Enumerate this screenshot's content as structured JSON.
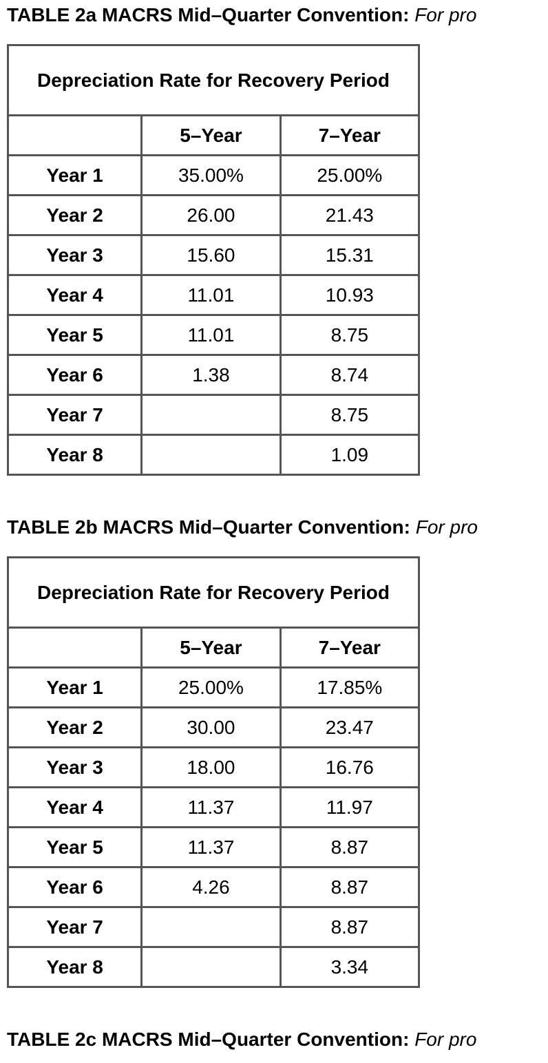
{
  "tables": [
    {
      "title_bold": "TABLE 2a MACRS Mid–Quarter Convention:",
      "title_italic": "For pro",
      "caption": "Depreciation Rate for Recovery Period",
      "columns": [
        "",
        "5–Year",
        "7–Year"
      ],
      "rows": [
        [
          "Year 1",
          "35.00%",
          "25.00%"
        ],
        [
          "Year 2",
          "26.00",
          "21.43"
        ],
        [
          "Year 3",
          "15.60",
          "15.31"
        ],
        [
          "Year 4",
          "11.01",
          "10.93"
        ],
        [
          "Year 5",
          "11.01",
          "8.75"
        ],
        [
          "Year 6",
          "1.38",
          "8.74"
        ],
        [
          "Year 7",
          "",
          "8.75"
        ],
        [
          "Year 8",
          "",
          "1.09"
        ]
      ]
    },
    {
      "title_bold": "TABLE 2b MACRS Mid–Quarter Convention:",
      "title_italic": "For pro",
      "caption": "Depreciation Rate for Recovery Period",
      "columns": [
        "",
        "5–Year",
        "7–Year"
      ],
      "rows": [
        [
          "Year 1",
          "25.00%",
          "17.85%"
        ],
        [
          "Year 2",
          "30.00",
          "23.47"
        ],
        [
          "Year 3",
          "18.00",
          "16.76"
        ],
        [
          "Year 4",
          "11.37",
          "11.97"
        ],
        [
          "Year 5",
          "11.37",
          "8.87"
        ],
        [
          "Year 6",
          "4.26",
          "8.87"
        ],
        [
          "Year 7",
          "",
          "8.87"
        ],
        [
          "Year 8",
          "",
          "3.34"
        ]
      ]
    }
  ],
  "next_title": {
    "title_bold": "TABLE 2c MACRS Mid–Quarter Convention:",
    "title_italic": "For pro"
  }
}
